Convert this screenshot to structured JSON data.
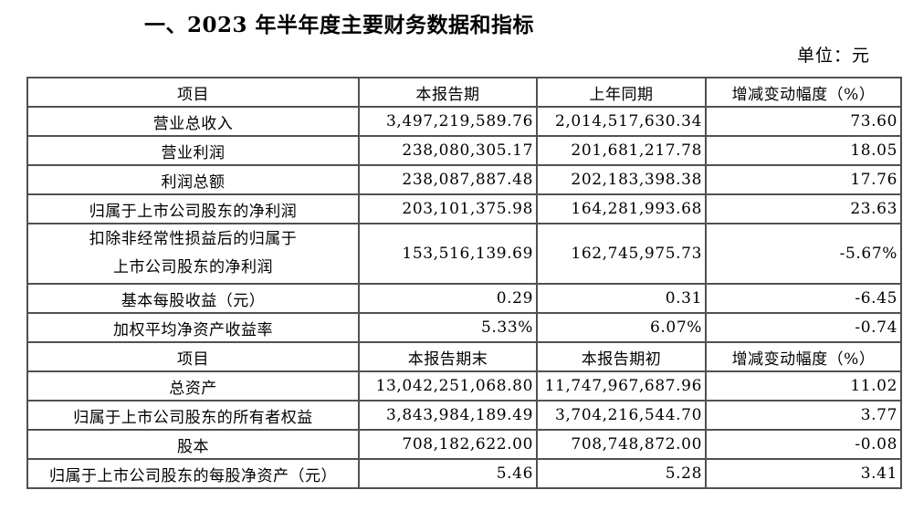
{
  "page": {
    "title": "一、2023 年半年度主要财务数据和指标",
    "unit_label": "单位：元"
  },
  "colors": {
    "background": "#ffffff",
    "text": "#000000",
    "table_border": "#515151"
  },
  "table": {
    "sections": [
      {
        "header": [
          "项目",
          "本报告期",
          "上年同期",
          "增减变动幅度（%）"
        ],
        "rows": [
          {
            "label": "营业总收入",
            "current": "3,497,219,589.76",
            "prior": "2,014,517,630.34",
            "change": "73.60"
          },
          {
            "label": "营业利润",
            "current": "238,080,305.17",
            "prior": "201,681,217.78",
            "change": "18.05"
          },
          {
            "label": "利润总额",
            "current": "238,087,887.48",
            "prior": "202,183,398.38",
            "change": "17.76"
          },
          {
            "label": "归属于上市公司股东的净利润",
            "current": "203,101,375.98",
            "prior": "164,281,993.68",
            "change": "23.63"
          },
          {
            "label_lines": [
              "扣除非经常性损益后的归属于",
              "上市公司股东的净利润"
            ],
            "current": "153,516,139.69",
            "prior": "162,745,975.73",
            "change": "-5.67%"
          },
          {
            "label": "基本每股收益（元）",
            "current": "0.29",
            "prior": "0.31",
            "change": "-6.45"
          },
          {
            "label": "加权平均净资产收益率",
            "current": "5.33%",
            "prior": "6.07%",
            "change": "-0.74"
          }
        ]
      },
      {
        "header": [
          "项目",
          "本报告期末",
          "本报告期初",
          "增减变动幅度（%）"
        ],
        "rows": [
          {
            "label": "总资产",
            "current": "13,042,251,068.80",
            "prior": "11,747,967,687.96",
            "change": "11.02"
          },
          {
            "label": "归属于上市公司股东的所有者权益",
            "current": "3,843,984,189.49",
            "prior": "3,704,216,544.70",
            "change": "3.77"
          },
          {
            "label": "股本",
            "current": "708,182,622.00",
            "prior": "708,748,872.00",
            "change": "-0.08"
          },
          {
            "label": "归属于上市公司股东的每股净资产（元）",
            "current": "5.46",
            "prior": "5.28",
            "change": "3.41"
          }
        ]
      }
    ]
  }
}
